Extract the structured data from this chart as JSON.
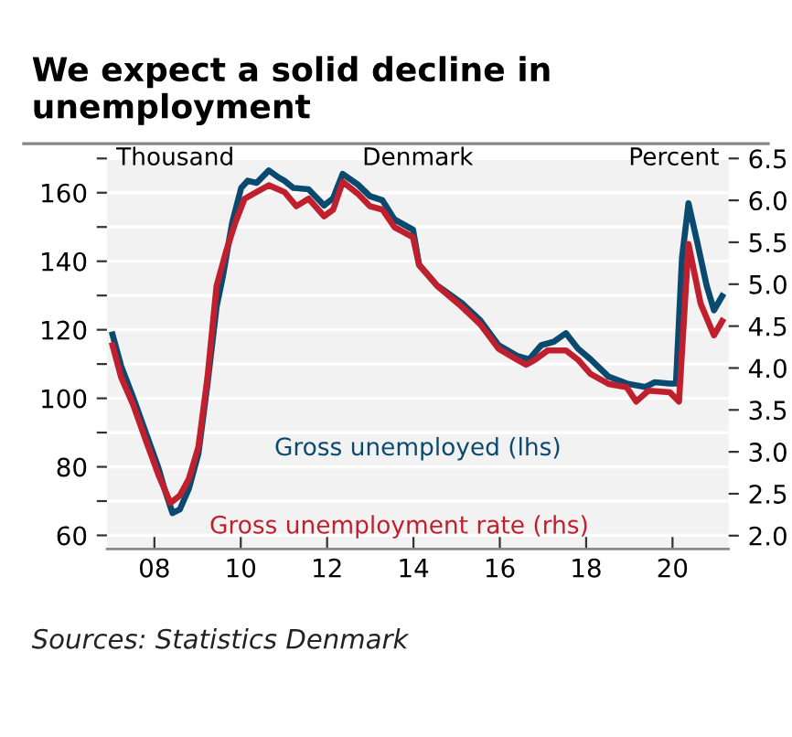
{
  "chart_data": {
    "type": "line",
    "title": "We expect a solid decline in unemployment",
    "annotations": [
      "Thousand",
      "Denmark",
      "Percent",
      "Sources: Statistics Denmark"
    ],
    "xlim": [
      2006.9,
      2021.3
    ],
    "xticks": [
      {
        "value": 2008,
        "label": "08"
      },
      {
        "value": 2010,
        "label": "10"
      },
      {
        "value": 2012,
        "label": "12"
      },
      {
        "value": 2014,
        "label": "14"
      },
      {
        "value": 2016,
        "label": "16"
      },
      {
        "value": 2018,
        "label": "18"
      },
      {
        "value": 2020,
        "label": "20"
      }
    ],
    "ylim": [
      56,
      170
    ],
    "yticks": [
      60,
      {
        "value": 70,
        "label": null
      },
      80,
      {
        "value": 90,
        "label": null
      },
      100,
      {
        "value": 110,
        "label": null
      },
      120,
      {
        "value": 130,
        "label": null
      },
      140,
      {
        "value": 150,
        "label": null
      },
      160,
      {
        "value": 170,
        "label": null
      }
    ],
    "y2lim": [
      1.84,
      6.5
    ],
    "y2ticks": [
      {
        "value": 2.0,
        "label": "2.0"
      },
      2.5,
      {
        "value": 3.0,
        "label": "3.0"
      },
      3.5,
      {
        "value": 4.0,
        "label": "4.0"
      },
      4.5,
      {
        "value": 5.0,
        "label": "5.0"
      },
      5.5,
      {
        "value": 6.0,
        "label": "6.0"
      },
      6.5
    ],
    "grid": "y",
    "legend": false,
    "line_style": "solid",
    "series": [
      {
        "name": "Gross unemployed (lhs)",
        "color": "#0b4a6f",
        "x": [
          2007.03,
          2007.23,
          2007.51,
          2007.8,
          2008.09,
          2008.23,
          2008.42,
          2008.59,
          2008.8,
          2009.02,
          2009.23,
          2009.44,
          2009.59,
          2009.8,
          2010.01,
          2010.16,
          2010.37,
          2010.65,
          2010.87,
          2011.01,
          2011.22,
          2011.57,
          2011.93,
          2012.14,
          2012.36,
          2012.71,
          2012.99,
          2013.28,
          2013.56,
          2013.99,
          2014.13,
          2014.55,
          2015.12,
          2015.55,
          2015.97,
          2016.4,
          2016.68,
          2016.96,
          2017.25,
          2017.53,
          2017.81,
          2018.1,
          2018.52,
          2018.94,
          2019.37,
          2019.59,
          2019.94,
          2020.08,
          2020.22,
          2020.37,
          2020.58,
          2020.79,
          2020.96,
          2021.15
        ],
        "values": [
          118.6,
          109.4,
          100.2,
          90,
          79.8,
          73.7,
          66.5,
          67.6,
          73.7,
          83.9,
          104.3,
          126.7,
          135.9,
          151.2,
          161.4,
          163.5,
          162.9,
          166.5,
          164.5,
          163.5,
          161.4,
          161,
          156.3,
          158.4,
          165.5,
          162.4,
          159,
          157.8,
          152.2,
          149.2,
          139,
          132.9,
          127.8,
          122.7,
          115.5,
          112.4,
          111.4,
          115.5,
          116.5,
          119,
          114.5,
          111.4,
          106.3,
          104.3,
          103.3,
          104.7,
          104.3,
          104.3,
          141,
          156.9,
          145.1,
          132.9,
          125.7,
          129.8
        ]
      },
      {
        "name": "Gross unemployment rate (rhs)",
        "color": "#c0202e",
        "axis": "y2",
        "x": [
          2007.03,
          2007.23,
          2007.51,
          2007.8,
          2008.09,
          2008.37,
          2008.59,
          2008.8,
          2009.02,
          2009.23,
          2009.44,
          2009.66,
          2009.87,
          2010.09,
          2010.37,
          2010.65,
          2011.01,
          2011.29,
          2011.57,
          2011.93,
          2012.14,
          2012.36,
          2012.71,
          2012.99,
          2013.28,
          2013.56,
          2013.99,
          2014.13,
          2014.55,
          2015.12,
          2015.55,
          2015.97,
          2016.4,
          2016.61,
          2016.82,
          2017.11,
          2017.53,
          2017.81,
          2018.1,
          2018.52,
          2018.94,
          2019.16,
          2019.44,
          2019.94,
          2020.15,
          2020.37,
          2020.65,
          2020.96,
          2021.15
        ],
        "values": [
          4.27,
          3.89,
          3.56,
          3.14,
          2.73,
          2.39,
          2.48,
          2.68,
          3.06,
          3.89,
          4.98,
          5.39,
          5.73,
          6.02,
          6.1,
          6.18,
          6.1,
          5.93,
          6.02,
          5.81,
          5.89,
          6.22,
          6.08,
          5.93,
          5.89,
          5.68,
          5.56,
          5.23,
          4.98,
          4.73,
          4.52,
          4.23,
          4.1,
          4.04,
          4.1,
          4.21,
          4.21,
          4.1,
          3.93,
          3.81,
          3.77,
          3.6,
          3.73,
          3.71,
          3.6,
          5.48,
          4.77,
          4.39,
          4.56
        ]
      }
    ]
  }
}
